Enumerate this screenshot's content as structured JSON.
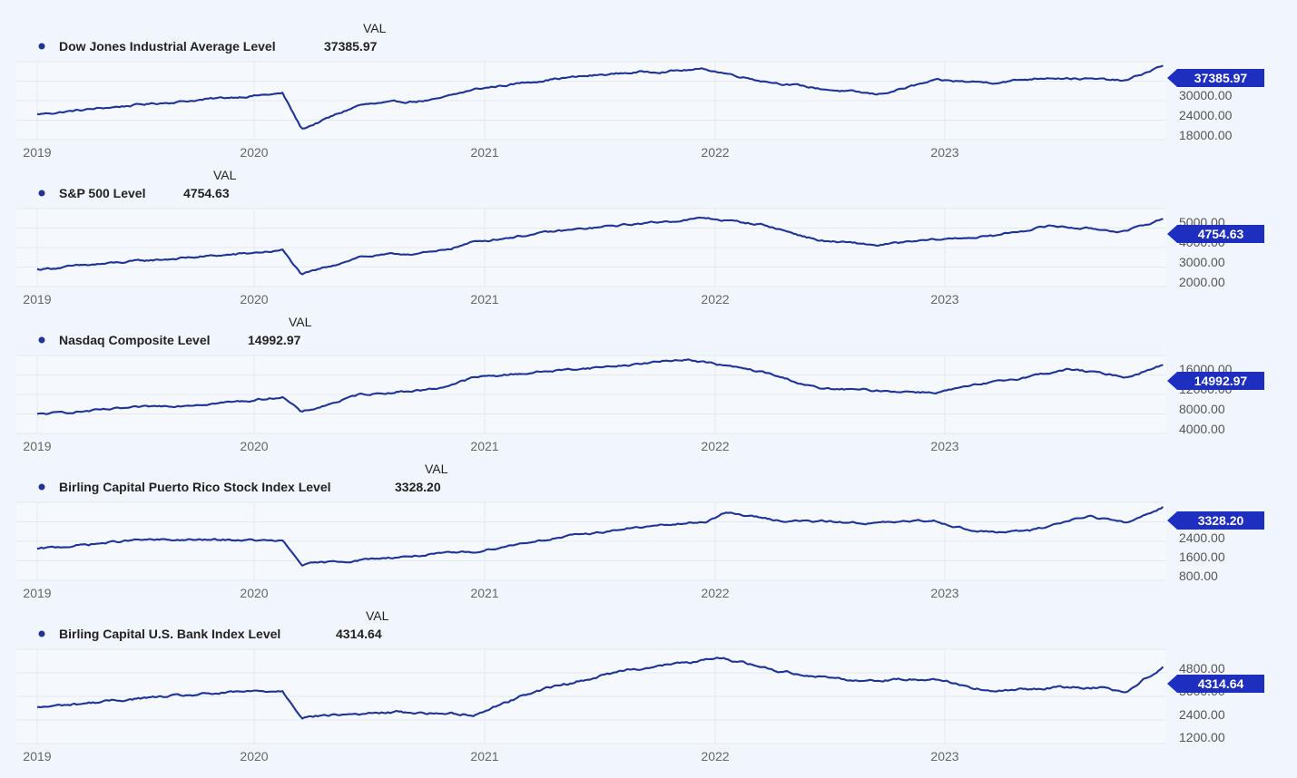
{
  "chart_data": [
    {
      "type": "line",
      "title": "",
      "value_header": "VAL",
      "series": [
        {
          "name": "Dow Jones Industrial Average Level",
          "last_value": "37385.97",
          "color": "#1f3496"
        }
      ],
      "x_ticks": [
        "2019",
        "2020",
        "2021",
        "2022",
        "2023"
      ],
      "y_ticks": [
        "30000.00",
        "24000.00",
        "18000.00"
      ],
      "ylim": [
        16000,
        38500
      ],
      "keypoints": [
        [
          "2019-01",
          23300
        ],
        [
          "2019-06",
          26000
        ],
        [
          "2019-12",
          28500
        ],
        [
          "2020-02",
          29300
        ],
        [
          "2020-03",
          19000
        ],
        [
          "2020-06",
          26000
        ],
        [
          "2020-10",
          27500
        ],
        [
          "2020-12",
          30500
        ],
        [
          "2021-04",
          33500
        ],
        [
          "2021-08",
          35300
        ],
        [
          "2021-12",
          36300
        ],
        [
          "2022-03",
          33000
        ],
        [
          "2022-06",
          30700
        ],
        [
          "2022-09",
          29000
        ],
        [
          "2022-12",
          33000
        ],
        [
          "2023-03",
          32500
        ],
        [
          "2023-06",
          34000
        ],
        [
          "2023-10",
          33000
        ],
        [
          "2023-12",
          37385.97
        ]
      ]
    },
    {
      "type": "line",
      "title": "",
      "value_header": "VAL",
      "series": [
        {
          "name": "S&P 500 Level",
          "last_value": "4754.63",
          "color": "#1f3496"
        }
      ],
      "x_ticks": [
        "2019",
        "2020",
        "2021",
        "2022",
        "2023"
      ],
      "y_ticks": [
        "5000.00",
        "4000.00",
        "3000.00",
        "2000.00"
      ],
      "ylim": [
        1800,
        5200
      ],
      "keypoints": [
        [
          "2019-01",
          2550
        ],
        [
          "2019-06",
          2900
        ],
        [
          "2019-12",
          3230
        ],
        [
          "2020-02",
          3380
        ],
        [
          "2020-03",
          2300
        ],
        [
          "2020-06",
          3100
        ],
        [
          "2020-10",
          3300
        ],
        [
          "2020-12",
          3750
        ],
        [
          "2021-04",
          4180
        ],
        [
          "2021-08",
          4500
        ],
        [
          "2021-12",
          4780
        ],
        [
          "2022-03",
          4500
        ],
        [
          "2022-06",
          3800
        ],
        [
          "2022-09",
          3600
        ],
        [
          "2022-12",
          3840
        ],
        [
          "2023-03",
          4000
        ],
        [
          "2023-06",
          4450
        ],
        [
          "2023-10",
          4200
        ],
        [
          "2023-12",
          4754.63
        ]
      ]
    },
    {
      "type": "line",
      "title": "",
      "value_header": "VAL",
      "series": [
        {
          "name": "Nasdaq Composite Level",
          "last_value": "14992.97",
          "color": "#1f3496"
        }
      ],
      "x_ticks": [
        "2019",
        "2020",
        "2021",
        "2022",
        "2023"
      ],
      "y_ticks": [
        "16000.00",
        "12000.00",
        "8000.00",
        "4000.00"
      ],
      "ylim": [
        3500,
        16600
      ],
      "keypoints": [
        [
          "2019-01",
          6700
        ],
        [
          "2019-06",
          7800
        ],
        [
          "2019-12",
          8900
        ],
        [
          "2020-02",
          9700
        ],
        [
          "2020-03",
          7000
        ],
        [
          "2020-06",
          10000
        ],
        [
          "2020-10",
          11000
        ],
        [
          "2020-12",
          12900
        ],
        [
          "2021-04",
          14000
        ],
        [
          "2021-08",
          15000
        ],
        [
          "2021-11",
          16000
        ],
        [
          "2022-03",
          13800
        ],
        [
          "2022-06",
          11000
        ],
        [
          "2022-09",
          10700
        ],
        [
          "2022-12",
          10400
        ],
        [
          "2023-03",
          12000
        ],
        [
          "2023-07",
          14300
        ],
        [
          "2023-10",
          13000
        ],
        [
          "2023-12",
          14992.97
        ]
      ]
    },
    {
      "type": "line",
      "title": "",
      "value_header": "VAL",
      "series": [
        {
          "name": "Birling Capital Puerto Rico Stock Index Level",
          "last_value": "3328.20",
          "color": "#1f3496"
        }
      ],
      "x_ticks": [
        "2019",
        "2020",
        "2021",
        "2022",
        "2023"
      ],
      "y_ticks": [
        "2400.00",
        "1600.00",
        "800.00"
      ],
      "ylim": [
        500,
        3500
      ],
      "keypoints": [
        [
          "2019-01",
          1700
        ],
        [
          "2019-06",
          2050
        ],
        [
          "2019-12",
          2050
        ],
        [
          "2020-02",
          2000
        ],
        [
          "2020-03",
          1100
        ],
        [
          "2020-08",
          1400
        ],
        [
          "2020-12",
          1600
        ],
        [
          "2021-03",
          2000
        ],
        [
          "2021-08",
          2500
        ],
        [
          "2021-12",
          2750
        ],
        [
          "2022-01",
          3100
        ],
        [
          "2022-04",
          2800
        ],
        [
          "2022-09",
          2700
        ],
        [
          "2022-12",
          2800
        ],
        [
          "2023-02",
          2400
        ],
        [
          "2023-03",
          2350
        ],
        [
          "2023-05",
          2400
        ],
        [
          "2023-08",
          3000
        ],
        [
          "2023-10",
          2700
        ],
        [
          "2023-12",
          3328.2
        ]
      ]
    },
    {
      "type": "line",
      "title": "",
      "value_header": "VAL",
      "series": [
        {
          "name": "Birling Capital U.S. Bank Index Level",
          "last_value": "4314.64",
          "color": "#1f3496"
        }
      ],
      "x_ticks": [
        "2019",
        "2020",
        "2021",
        "2022",
        "2023"
      ],
      "y_ticks": [
        "4800.00",
        "3600.00",
        "2400.00",
        "1200.00"
      ],
      "ylim": [
        900,
        5100
      ],
      "keypoints": [
        [
          "2019-01",
          2500
        ],
        [
          "2019-06",
          2900
        ],
        [
          "2019-12",
          3200
        ],
        [
          "2020-02",
          3250
        ],
        [
          "2020-03",
          2100
        ],
        [
          "2020-08",
          2300
        ],
        [
          "2020-12",
          2200
        ],
        [
          "2021-03",
          3200
        ],
        [
          "2021-08",
          4200
        ],
        [
          "2021-12",
          4600
        ],
        [
          "2022-01",
          4700
        ],
        [
          "2022-04",
          4100
        ],
        [
          "2022-08",
          3700
        ],
        [
          "2022-12",
          3800
        ],
        [
          "2023-03",
          3200
        ],
        [
          "2023-06",
          3400
        ],
        [
          "2023-09",
          3400
        ],
        [
          "2023-10",
          3200
        ],
        [
          "2023-12",
          4314.64
        ]
      ]
    }
  ]
}
